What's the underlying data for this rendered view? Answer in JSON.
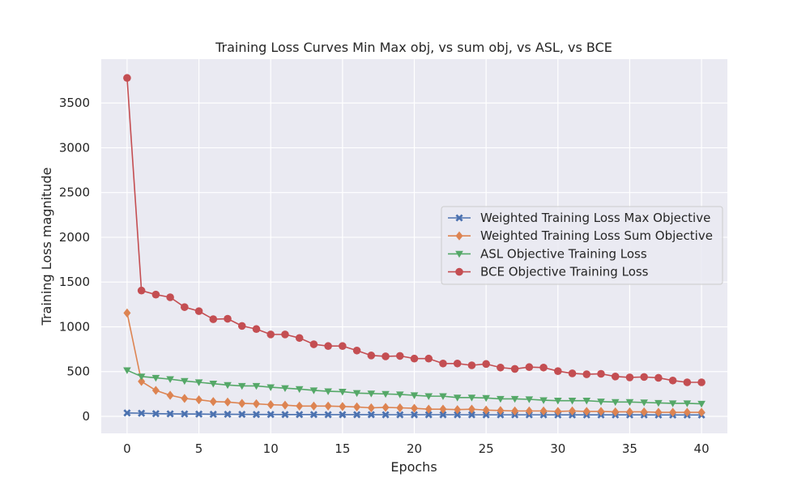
{
  "chart_data": {
    "type": "line",
    "title": "Training Loss Curves Min Max obj, vs sum obj, vs ASL, vs BCE",
    "xlabel": "Epochs",
    "ylabel": "Training Loss magnitude",
    "xlim": [
      -1.8,
      41.8
    ],
    "ylim": [
      -190,
      3990
    ],
    "xticks": [
      0,
      5,
      10,
      15,
      20,
      25,
      30,
      35,
      40
    ],
    "yticks": [
      0,
      500,
      1000,
      1500,
      2000,
      2500,
      3000,
      3500
    ],
    "grid": true,
    "legend_position": "center-right",
    "background": "#eaeaf2",
    "x": [
      0,
      1,
      2,
      3,
      4,
      5,
      6,
      7,
      8,
      9,
      10,
      11,
      12,
      13,
      14,
      15,
      16,
      17,
      18,
      19,
      20,
      21,
      22,
      23,
      24,
      25,
      26,
      27,
      28,
      29,
      30,
      31,
      32,
      33,
      34,
      35,
      36,
      37,
      38,
      39,
      40
    ],
    "series": [
      {
        "name": "Weighted Training Loss Max Objective",
        "color": "#4c72b0",
        "marker": "x-filled",
        "values": [
          38,
          35,
          30,
          28,
          27,
          25,
          23,
          23,
          22,
          21,
          21,
          20,
          20,
          20,
          19,
          19,
          19,
          19,
          18,
          18,
          18,
          18,
          18,
          18,
          17,
          17,
          17,
          17,
          17,
          17,
          16,
          16,
          16,
          16,
          16,
          16,
          16,
          15,
          15,
          15,
          15
        ]
      },
      {
        "name": "Weighted Training Loss Sum Objective",
        "color": "#dd8452",
        "marker": "diamond",
        "values": [
          1155,
          390,
          290,
          235,
          200,
          185,
          165,
          160,
          145,
          140,
          130,
          125,
          115,
          115,
          115,
          110,
          105,
          95,
          100,
          95,
          90,
          80,
          80,
          75,
          80,
          70,
          65,
          60,
          60,
          60,
          55,
          60,
          55,
          55,
          50,
          50,
          50,
          45,
          45,
          45,
          45
        ]
      },
      {
        "name": "ASL Objective Training Loss",
        "color": "#55a868",
        "marker": "triangle-down",
        "values": [
          515,
          445,
          430,
          415,
          395,
          380,
          365,
          350,
          340,
          340,
          325,
          315,
          305,
          290,
          280,
          275,
          260,
          255,
          250,
          245,
          235,
          225,
          225,
          210,
          210,
          205,
          195,
          195,
          190,
          180,
          175,
          175,
          175,
          165,
          160,
          160,
          155,
          150,
          145,
          145,
          140
        ]
      },
      {
        "name": "BCE Objective Training Loss",
        "color": "#c44e52",
        "marker": "circle",
        "values": [
          3780,
          1405,
          1360,
          1330,
          1220,
          1175,
          1085,
          1090,
          1010,
          975,
          915,
          915,
          875,
          805,
          785,
          785,
          735,
          680,
          670,
          675,
          645,
          645,
          590,
          590,
          570,
          585,
          545,
          530,
          550,
          545,
          505,
          480,
          470,
          475,
          445,
          435,
          440,
          430,
          400,
          380,
          380
        ]
      }
    ]
  }
}
